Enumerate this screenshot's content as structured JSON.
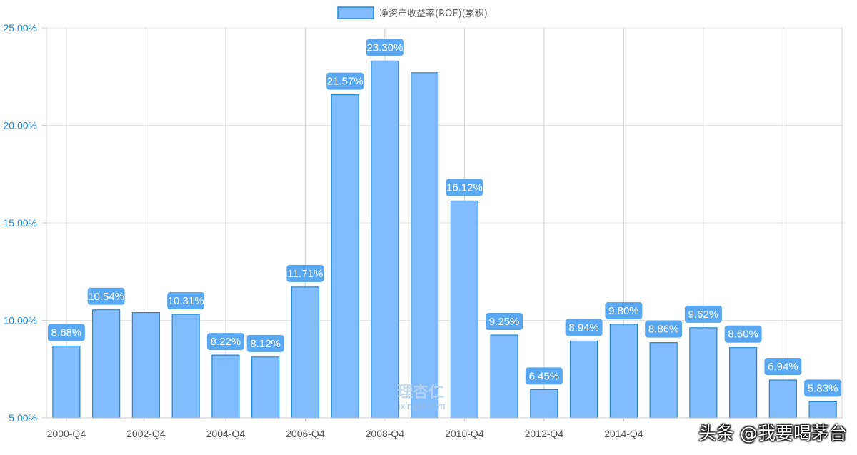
{
  "chart_data": {
    "type": "bar",
    "legend": {
      "label": "净资产收益率(ROE)(累积)",
      "position": "top-center",
      "swatch_fill": "#81bcff",
      "swatch_stroke": "#1e88d8"
    },
    "x_tick_labels": [
      "2000-Q4",
      "2002-Q4",
      "2004-Q4",
      "2006-Q4",
      "2008-Q4",
      "2010-Q4",
      "2012-Q4",
      "2014-Q4"
    ],
    "y_tick_labels": [
      "5.00%",
      "10.00%",
      "15.00%",
      "20.00%",
      "25.00%"
    ],
    "y_ticks": [
      5,
      10,
      15,
      20,
      25
    ],
    "ylim": [
      5,
      25
    ],
    "grid": true,
    "series": [
      {
        "name": "净资产收益率(ROE)(累积)",
        "color": "#81bcff",
        "border_color": "#1e88d8",
        "values": [
          8.68,
          10.54,
          10.4,
          10.31,
          8.22,
          8.12,
          11.71,
          21.57,
          23.3,
          22.7,
          16.12,
          9.25,
          6.45,
          8.94,
          9.8,
          8.86,
          9.62,
          8.6,
          6.94,
          5.83
        ],
        "data_labels": [
          "8.68%",
          "10.54%",
          "",
          "10.31%",
          "8.22%",
          "8.12%",
          "11.71%",
          "21.57%",
          "23.30%",
          "",
          "16.12%",
          "9.25%",
          "6.45%",
          "8.94%",
          "9.80%",
          "8.86%",
          "9.62%",
          "8.60%",
          "6.94%",
          "5.83%"
        ]
      }
    ],
    "label_color": "#5aa8f2",
    "axis_tick_color": "#1e88d8"
  },
  "watermark": {
    "name": "理杏仁",
    "url": "lixinger.com"
  },
  "source_tag": "头条 @我要喝茅台"
}
